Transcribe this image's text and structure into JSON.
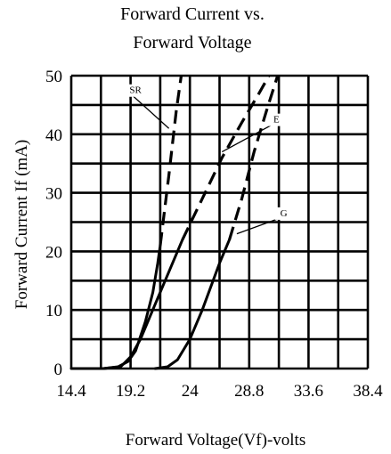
{
  "chart_data": {
    "type": "line",
    "title_lines": [
      "Forward  Current  vs.",
      "Forward  Voltage"
    ],
    "xlabel": "Forward Voltage(Vf)-volts",
    "ylabel": "Forward   Current   If   (mA)",
    "x_ticks": [
      "14.4",
      "19.2",
      "24",
      "28.8",
      "33.6",
      "38.4"
    ],
    "y_ticks": [
      "0",
      "10",
      "20",
      "30",
      "40",
      "50"
    ],
    "xlim": [
      14.4,
      38.4
    ],
    "ylim": [
      0,
      50
    ],
    "grid": true,
    "series": [
      {
        "name": "SR",
        "solid": [
          [
            14.4,
            0
          ],
          [
            17.0,
            0
          ],
          [
            18.2,
            0.3
          ],
          [
            19.0,
            1.2
          ],
          [
            19.6,
            3
          ],
          [
            20.4,
            8
          ],
          [
            21.0,
            13
          ],
          [
            21.4,
            18
          ],
          [
            21.6,
            21
          ]
        ],
        "dashed": [
          [
            21.6,
            21
          ],
          [
            22.3,
            33
          ],
          [
            22.9,
            44
          ],
          [
            23.3,
            50
          ]
        ]
      },
      {
        "name": "E",
        "solid": [
          [
            17.0,
            0
          ],
          [
            18.4,
            0.3
          ],
          [
            19.2,
            2
          ],
          [
            20.0,
            5
          ],
          [
            21.2,
            11
          ],
          [
            22.4,
            17
          ],
          [
            23.4,
            22
          ]
        ],
        "dashed": [
          [
            23.4,
            22
          ],
          [
            25.0,
            29
          ],
          [
            26.6,
            36
          ],
          [
            28.2,
            42
          ],
          [
            29.6,
            47
          ],
          [
            30.4,
            50
          ]
        ]
      },
      {
        "name": "G",
        "solid": [
          [
            21.2,
            0
          ],
          [
            22.2,
            0.3
          ],
          [
            23.0,
            1.5
          ],
          [
            24.0,
            5
          ],
          [
            25.0,
            10
          ],
          [
            26.4,
            18
          ],
          [
            27.2,
            22
          ]
        ],
        "dashed": [
          [
            27.2,
            22
          ],
          [
            28.2,
            29
          ],
          [
            29.2,
            37
          ],
          [
            30.2,
            44
          ],
          [
            31.1,
            50
          ]
        ]
      }
    ],
    "annotations": [
      {
        "text": "SR",
        "target": [
          22.3,
          41
        ],
        "label_at": [
          19.6,
          47
        ]
      },
      {
        "text": "E",
        "target": [
          26.6,
          37
        ],
        "label_at": [
          31.0,
          42
        ]
      },
      {
        "text": "G",
        "target": [
          27.8,
          23
        ],
        "label_at": [
          31.6,
          26
        ]
      }
    ]
  }
}
